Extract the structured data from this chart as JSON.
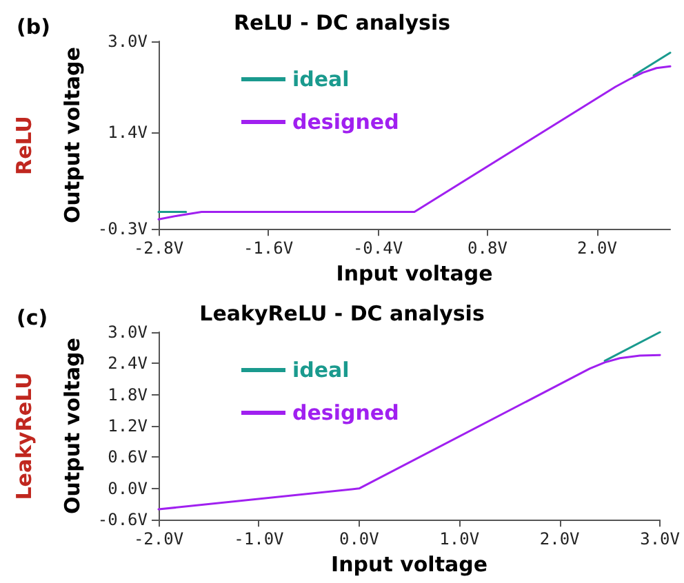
{
  "chart_data": [
    {
      "type": "line",
      "title": "ReLU - DC analysis",
      "xlabel": "Input voltage",
      "ylabel": "Output voltage",
      "annotations": [
        "(b)",
        "ReLU"
      ],
      "xlim": [
        -2.8,
        2.8
      ],
      "xticks": [
        {
          "value": -2.8,
          "label": "-2.8V"
        },
        {
          "value": -1.6,
          "label": "-1.6V"
        },
        {
          "value": -0.4,
          "label": "-0.4V"
        },
        {
          "value": 0.8,
          "label": "0.8V"
        },
        {
          "value": 2.0,
          "label": "2.0V"
        }
      ],
      "ylim": [
        -0.3,
        3.0
      ],
      "yticks": [
        {
          "value": -0.3,
          "label": "-0.3V"
        },
        {
          "value": 1.4,
          "label": "1.4V"
        },
        {
          "value": 3.0,
          "label": "3.0V"
        }
      ],
      "grid": false,
      "legend": "top left",
      "marker": "none",
      "line_style": "solid",
      "series": [
        {
          "name": "ideal",
          "color": "#1a9a8e",
          "x": [
            -2.8,
            -2.5,
            0,
            2.4,
            2.8
          ],
          "values": [
            0,
            0,
            null,
            2.4,
            2.8
          ]
        },
        {
          "name": "designed",
          "color": "#a020f0",
          "x": [
            -2.8,
            -2.6,
            -2.33,
            0,
            2.2,
            2.35,
            2.5,
            2.65,
            2.8
          ],
          "values": [
            -0.13,
            -0.07,
            0,
            0,
            2.2,
            2.33,
            2.45,
            2.53,
            2.56
          ]
        }
      ]
    },
    {
      "type": "line",
      "title": "LeakyReLU - DC analysis",
      "xlabel": "Input voltage",
      "ylabel": "Output voltage",
      "annotations": [
        "(c)",
        "LeakyReLU"
      ],
      "xlim": [
        -2.0,
        3.0
      ],
      "xticks": [
        {
          "value": -2.0,
          "label": "-2.0V"
        },
        {
          "value": -1.0,
          "label": "-1.0V"
        },
        {
          "value": 0.0,
          "label": "0.0V"
        },
        {
          "value": 1.0,
          "label": "1.0V"
        },
        {
          "value": 2.0,
          "label": "2.0V"
        },
        {
          "value": 3.0,
          "label": "3.0V"
        }
      ],
      "ylim": [
        -0.6,
        3.0
      ],
      "yticks": [
        {
          "value": -0.6,
          "label": "-0.6V"
        },
        {
          "value": 0.0,
          "label": "0.0V"
        },
        {
          "value": 0.6,
          "label": "0.6V"
        },
        {
          "value": 1.2,
          "label": "1.2V"
        },
        {
          "value": 1.8,
          "label": "1.8V"
        },
        {
          "value": 2.4,
          "label": "2.4V"
        },
        {
          "value": 3.0,
          "label": "3.0V"
        }
      ],
      "grid": false,
      "legend": "top left",
      "marker": "none",
      "line_style": "solid",
      "series": [
        {
          "name": "ideal",
          "color": "#1a9a8e",
          "x": [
            2.45,
            3.0
          ],
          "values": [
            2.45,
            3.0
          ]
        },
        {
          "name": "designed",
          "color": "#a020f0",
          "x": [
            -2.0,
            0,
            2.3,
            2.45,
            2.6,
            2.8,
            3.0
          ],
          "values": [
            -0.4,
            0,
            2.3,
            2.42,
            2.5,
            2.55,
            2.56
          ]
        }
      ]
    }
  ]
}
